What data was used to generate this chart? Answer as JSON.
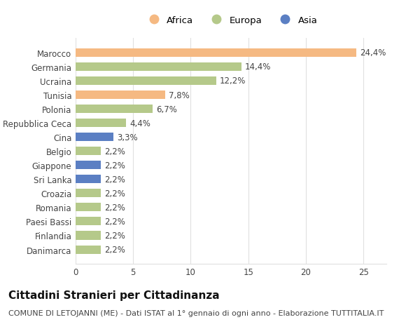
{
  "categories": [
    "Danimarca",
    "Finlandia",
    "Paesi Bassi",
    "Romania",
    "Croazia",
    "Sri Lanka",
    "Giappone",
    "Belgio",
    "Cina",
    "Repubblica Ceca",
    "Polonia",
    "Tunisia",
    "Ucraina",
    "Germania",
    "Marocco"
  ],
  "values": [
    2.2,
    2.2,
    2.2,
    2.2,
    2.2,
    2.2,
    2.2,
    2.2,
    3.3,
    4.4,
    6.7,
    7.8,
    12.2,
    14.4,
    24.4
  ],
  "labels": [
    "2,2%",
    "2,2%",
    "2,2%",
    "2,2%",
    "2,2%",
    "2,2%",
    "2,2%",
    "2,2%",
    "3,3%",
    "4,4%",
    "6,7%",
    "7,8%",
    "12,2%",
    "14,4%",
    "24,4%"
  ],
  "continents": [
    "Europa",
    "Europa",
    "Europa",
    "Europa",
    "Europa",
    "Asia",
    "Asia",
    "Europa",
    "Asia",
    "Europa",
    "Europa",
    "Africa",
    "Europa",
    "Europa",
    "Africa"
  ],
  "colors": {
    "Africa": "#F5B982",
    "Europa": "#B5C98A",
    "Asia": "#5B7FC3"
  },
  "title": "Cittadini Stranieri per Cittadinanza",
  "subtitle": "COMUNE DI LETOJANNI (ME) - Dati ISTAT al 1° gennaio di ogni anno - Elaborazione TUTTITALIA.IT",
  "xlim": [
    0,
    27
  ],
  "xticks": [
    0,
    5,
    10,
    15,
    20,
    25
  ],
  "background_color": "#ffffff",
  "bar_height": 0.6,
  "grid_color": "#e0e0e0",
  "label_fontsize": 8.5,
  "tick_fontsize": 8.5,
  "title_fontsize": 11,
  "subtitle_fontsize": 8
}
